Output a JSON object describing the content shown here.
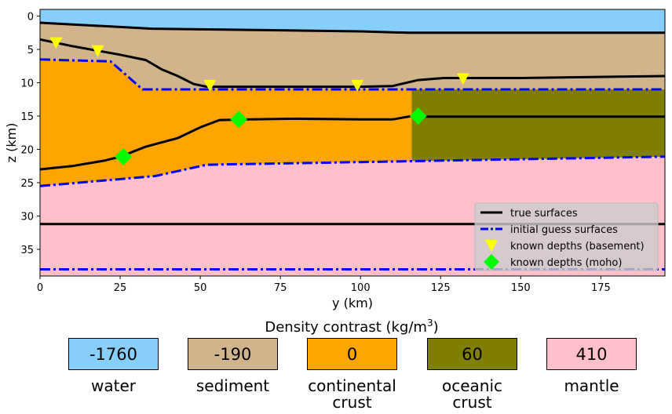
{
  "chart_data": {
    "type": "area",
    "xlabel": "y (km)",
    "ylabel": "z (km)",
    "xlim": [
      0,
      195
    ],
    "ylim": [
      39,
      -1
    ],
    "y_inverted": true,
    "xticks": [
      "0",
      "25",
      "50",
      "75",
      "100",
      "125",
      "150",
      "175"
    ],
    "yticks": [
      "0",
      "5",
      "10",
      "15",
      "20",
      "25",
      "30",
      "35"
    ],
    "grid": false,
    "legend_placement": "lower-right",
    "layers": [
      {
        "name": "water",
        "color": "#87cefa"
      },
      {
        "name": "sediment",
        "color": "#d2b48c"
      },
      {
        "name": "continental crust",
        "color": "#ffa500"
      },
      {
        "name": "oceanic crust",
        "color": "#808000"
      },
      {
        "name": "mantle",
        "color": "#ffc0cb"
      }
    ],
    "oceanic_crust_start_y": 116,
    "true_surfaces": [
      {
        "x": [
          0,
          35,
          70,
          100,
          115,
          195
        ],
        "z": [
          1.0,
          1.9,
          2.1,
          2.3,
          2.5,
          2.5
        ]
      },
      {
        "x": [
          0,
          10,
          25,
          33,
          38,
          43,
          48,
          52,
          60,
          80,
          100,
          110,
          118,
          126,
          150,
          195
        ],
        "z": [
          3.5,
          4.5,
          5.8,
          6.6,
          8.0,
          9.0,
          10.2,
          10.6,
          10.6,
          10.6,
          10.6,
          10.5,
          9.6,
          9.3,
          9.3,
          9.0
        ]
      },
      {
        "x": [
          0,
          10,
          20,
          25,
          33,
          43,
          50,
          56,
          65,
          80,
          100,
          110,
          116,
          120,
          195
        ],
        "z": [
          23.0,
          22.5,
          21.7,
          21.1,
          19.6,
          18.3,
          16.7,
          15.6,
          15.5,
          15.4,
          15.5,
          15.5,
          15.0,
          15.1,
          15.1
        ]
      },
      {
        "x": [
          0,
          195
        ],
        "z": [
          31.2,
          31.2
        ]
      }
    ],
    "initial_guess_surfaces": [
      {
        "x": [
          0,
          22,
          32,
          195
        ],
        "z": [
          6.5,
          6.8,
          11.0,
          11.0
        ]
      },
      {
        "x": [
          0,
          36,
          52,
          100,
          195
        ],
        "z": [
          25.5,
          24.0,
          22.3,
          21.9,
          21.1
        ]
      },
      {
        "x": [
          0,
          195
        ],
        "z": [
          38.0,
          38.0
        ]
      }
    ],
    "known_depths_basement": [
      {
        "x": 5,
        "z": 4.0
      },
      {
        "x": 18,
        "z": 5.2
      },
      {
        "x": 53,
        "z": 10.4
      },
      {
        "x": 99,
        "z": 10.4
      },
      {
        "x": 132,
        "z": 9.4
      }
    ],
    "known_depths_moho": [
      {
        "x": 26,
        "z": 21.1
      },
      {
        "x": 62,
        "z": 15.5
      },
      {
        "x": 118,
        "z": 15.0
      }
    ],
    "legend": [
      {
        "label": "true surfaces",
        "style": "solid-line",
        "color": "#000000"
      },
      {
        "label": "initial guess surfaces",
        "style": "dashdot-line",
        "color": "#0000ff"
      },
      {
        "label": "known depths (basement)",
        "style": "triangle-down",
        "color": "#ffff00"
      },
      {
        "label": "known depths (moho)",
        "style": "diamond",
        "color": "#00ff00"
      }
    ]
  },
  "density": {
    "title": "Density contrast (kg/m",
    "title_sup": "3",
    "title_end": ")",
    "items": [
      {
        "value": "-1760",
        "label": "water",
        "color": "#87cefa"
      },
      {
        "value": "-190",
        "label": "sediment",
        "color": "#d2b48c"
      },
      {
        "value": "0",
        "label": "continental\ncrust",
        "color": "#ffa500"
      },
      {
        "value": "60",
        "label": "oceanic\ncrust",
        "color": "#808000"
      },
      {
        "value": "410",
        "label": "mantle",
        "color": "#ffc0cb"
      }
    ]
  }
}
